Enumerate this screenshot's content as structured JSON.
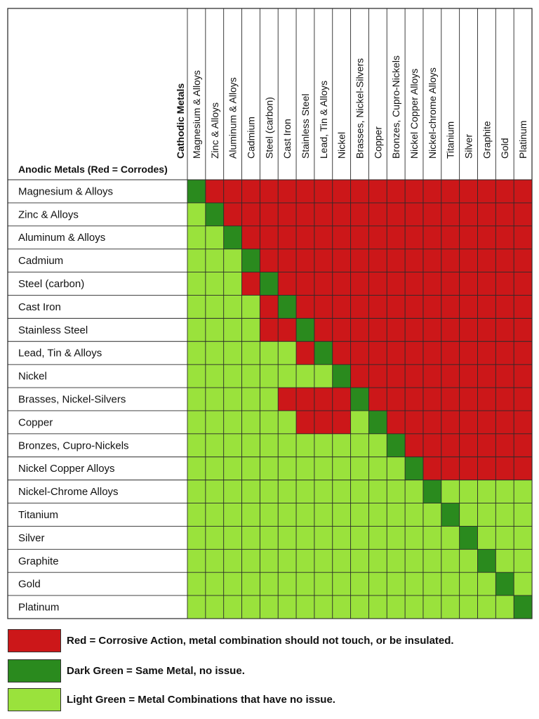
{
  "chart_data": {
    "type": "heatmap",
    "corner_labels": {
      "cathodic": "Cathodic Metals",
      "anodic": "Anodic Metals (Red = Corrodes)"
    },
    "columns": [
      "Magnesium & Alloys",
      "Zinc & Alloys",
      "Aluminum & Alloys",
      "Cadmium",
      "Steel (carbon)",
      "Cast Iron",
      "Stainless Steel",
      "Lead, Tin & Alloys",
      "Nickel",
      "Brasses, Nickel-Silvers",
      "Copper",
      "Bronzes, Cupro-Nickels",
      "Nickel Copper Alloys",
      "Nickel-chrome Alloys",
      "Titanium",
      "Silver",
      "Graphite",
      "Gold",
      "Platinum"
    ],
    "rows": [
      "Magnesium & Alloys",
      "Zinc & Alloys",
      "Aluminum & Alloys",
      "Cadmium",
      "Steel (carbon)",
      "Cast Iron",
      "Stainless Steel",
      "Lead, Tin & Alloys",
      "Nickel",
      "Brasses, Nickel-Silvers",
      "Copper",
      "Bronzes, Cupro-Nickels",
      "Nickel Copper Alloys",
      "Nickel-Chrome Alloys",
      "Titanium",
      "Silver",
      "Graphite",
      "Gold",
      "Platinum"
    ],
    "legend_key": {
      "R": "corrosive",
      "D": "same",
      "L": "no-issue"
    },
    "cells": [
      "DRRRRRRRRRRRRRRRRRR",
      "LDRRRRRRRRRRRRRRRRR",
      "LLDRRRRRRRRRRRRRRRR",
      "LLLDRRRRRRRRRRRRRRR",
      "LLLRDRRRRRRRRRRRRRR",
      "LLLLRDRRRRRRRRRRRRR",
      "LLLLRRDRRRRRRRRRRRR",
      "LLLLLLRDRRRRRRRRRRR",
      "LLLLLLLLDRRRRRRRRRR",
      "LLLLLRRRRDRRRRRRRRR",
      "LLLLLLRRRLDRRRRRRRR",
      "LLLLLLLLLLLDRRRRRRR",
      "LLLLLLLLLLLLDRRRRRR",
      "LLLLLLLLLLLLLDLLLLL",
      "LLLLLLLLLLLLLLDLLLL",
      "LLLLLLLLLLLLLLLDLLL",
      "LLLLLLLLLLLLLLLLDLL",
      "LLLLLLLLLLLLLLLLLDL",
      "LLLLLLLLLLLLLLLLLLD"
    ],
    "legend": [
      {
        "key": "corrosive",
        "color": "#cc1719",
        "label": "Red = Corrosive Action, metal combination should not touch, or be insulated."
      },
      {
        "key": "same",
        "color": "#2a8a1e",
        "label": "Dark Green = Same Metal, no issue."
      },
      {
        "key": "no-issue",
        "color": "#9ae23c",
        "label": "Light Green = Metal Combinations that have no issue."
      }
    ]
  }
}
